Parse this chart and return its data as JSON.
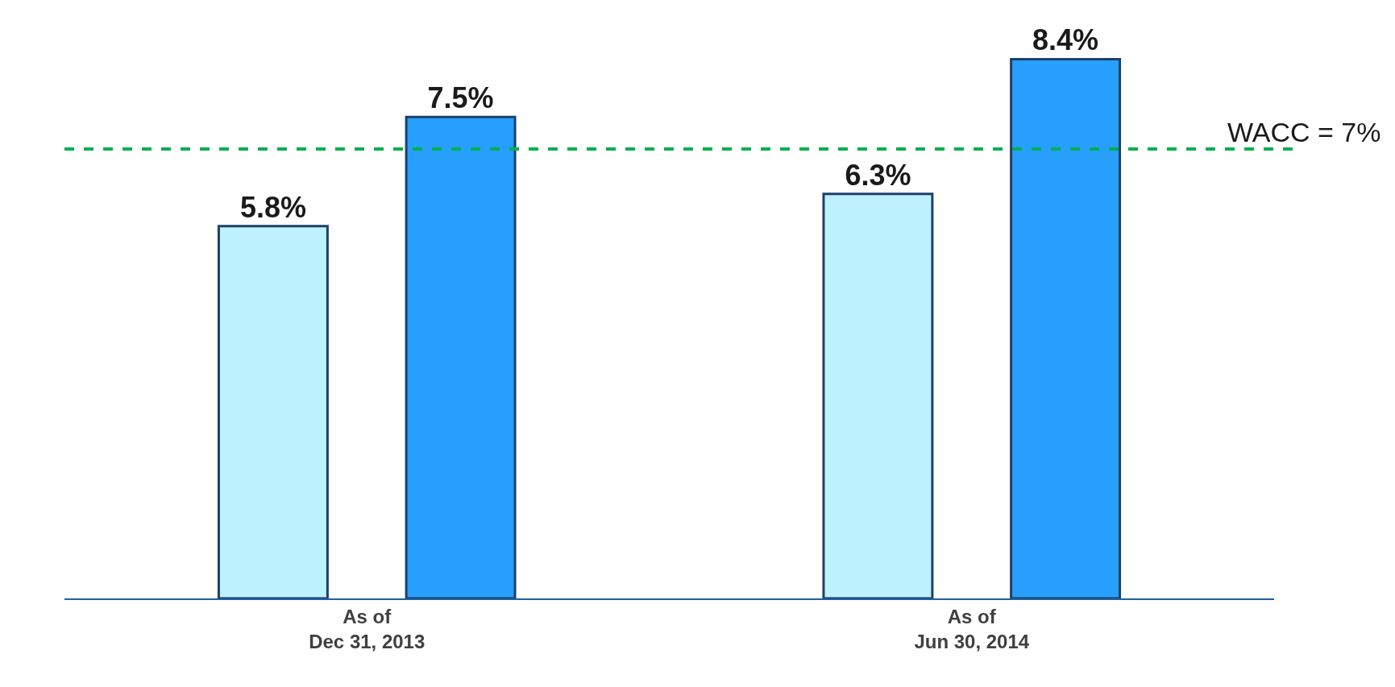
{
  "chart_data": {
    "type": "bar",
    "categories": [
      "As of\nDec 31, 2013",
      "As of\nJun 30, 2014"
    ],
    "series": [
      {
        "color": "#bdf1fd",
        "values": [
          5.8,
          6.3
        ],
        "value_labels": [
          "5.8%",
          "6.3%"
        ]
      },
      {
        "color": "#279ffd",
        "values": [
          7.5,
          8.4
        ],
        "value_labels": [
          "7.5%",
          "8.4%"
        ]
      }
    ],
    "ref_lines": [
      {
        "axis": "y",
        "value": 7,
        "label": "WACC = 7%",
        "color": "#00b050",
        "line_style": "dashed"
      }
    ]
  }
}
